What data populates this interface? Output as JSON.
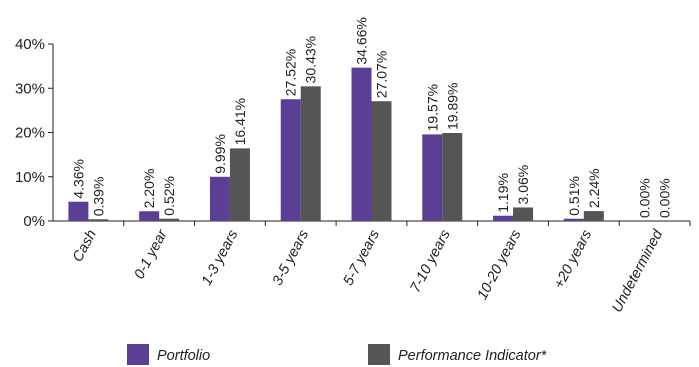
{
  "chart_data": {
    "type": "bar",
    "categories": [
      "Cash",
      "0-1 year",
      "1-3 years",
      "3-5 years",
      "5-7 years",
      "7-10 years",
      "10-20 years",
      "+20 years",
      "Undetermined"
    ],
    "series": [
      {
        "name": "Portfolio",
        "color": "#5b3f95",
        "values": [
          4.36,
          2.2,
          9.99,
          27.52,
          34.66,
          19.57,
          1.19,
          0.51,
          0.0
        ],
        "labels": [
          "4.36%",
          "2.20%",
          "9.99%",
          "27.52%",
          "34.66%",
          "19.57%",
          "1.19%",
          "0.51%",
          "0.00%"
        ]
      },
      {
        "name": "Performance Indicator*",
        "color": "#555555",
        "values": [
          0.39,
          0.52,
          16.41,
          30.43,
          27.07,
          19.89,
          3.06,
          2.24,
          0.0
        ],
        "labels": [
          "0.39%",
          "0.52%",
          "16.41%",
          "30.43%",
          "27.07%",
          "19.89%",
          "3.06%",
          "2.24%",
          "0.00%"
        ]
      }
    ],
    "yticks": [
      0,
      10,
      20,
      30,
      40
    ],
    "ytick_labels": [
      "0%",
      "10%",
      "20%",
      "30%",
      "40%"
    ],
    "ylim": [
      0,
      40
    ],
    "grid": false,
    "legend": "bottom"
  }
}
